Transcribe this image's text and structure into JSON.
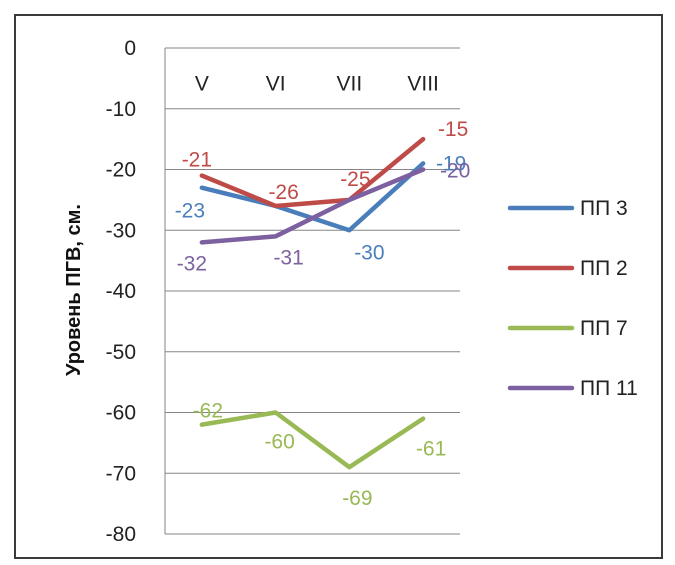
{
  "chart_data": {
    "type": "line",
    "title": "",
    "xlabel": "",
    "ylabel": "Уровень ПГВ, см.",
    "ylim": [
      -80,
      0
    ],
    "yticks": [
      0,
      -10,
      -20,
      -30,
      -40,
      -50,
      -60,
      -70,
      -80
    ],
    "categories": [
      "V",
      "VI",
      "VII",
      "VIII"
    ],
    "grid": true,
    "legend_position": "right",
    "series": [
      {
        "name": "ПП 3",
        "color": "#4a7ebb",
        "values": [
          -23,
          -26,
          -30,
          -19
        ],
        "labels": [
          "-23",
          "",
          "-30",
          "-19"
        ]
      },
      {
        "name": "ПП 2",
        "color": "#be4b48",
        "values": [
          -21,
          -26,
          -25,
          -15
        ],
        "labels": [
          "-21",
          "-26",
          "-25",
          "-15"
        ]
      },
      {
        "name": "ПП 7",
        "color": "#98b954",
        "values": [
          -62,
          -60,
          -69,
          -61
        ],
        "labels": [
          "-62",
          "-60",
          "-69",
          "-61"
        ]
      },
      {
        "name": "ПП 11",
        "color": "#7d60a0",
        "values": [
          -32,
          -31,
          -25,
          -20
        ],
        "labels": [
          "-32",
          "-31",
          "",
          "-20"
        ]
      }
    ]
  }
}
